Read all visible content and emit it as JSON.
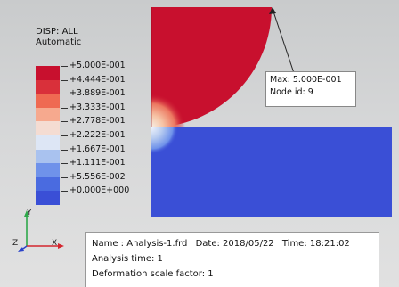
{
  "legend": {
    "title_line1": "DISP: ALL",
    "title_line2": "Automatic",
    "colors": [
      "#c8102e",
      "#d9303a",
      "#ef6a52",
      "#f6a98e",
      "#f4dcd2",
      "#dde6f5",
      "#a9c2ef",
      "#6f92ea",
      "#4a6be0",
      "#3a4fd6"
    ],
    "labels": [
      "+5.000E-001",
      "+4.444E-001",
      "+3.889E-001",
      "+3.333E-001",
      "+2.778E-001",
      "+2.222E-001",
      "+1.667E-001",
      "+1.111E-001",
      "+5.556E-002",
      "+0.000E+000"
    ]
  },
  "callout": {
    "max_text": "Max: 5.000E-001",
    "node_text": "Node id: 9"
  },
  "info": {
    "name": "Name : Analysis-1.frd",
    "date": "Date: 2018/05/22",
    "time": "Time: 18:21:02",
    "analysis_time": "Analysis time: 1",
    "deformation": "Deformation scale factor: 1"
  },
  "triad": {
    "y_label": "Y",
    "z_label": "Z",
    "x_label": "X"
  },
  "colors": {
    "upper_part": "#c8102e",
    "lower_part": "#3a4fd6"
  }
}
